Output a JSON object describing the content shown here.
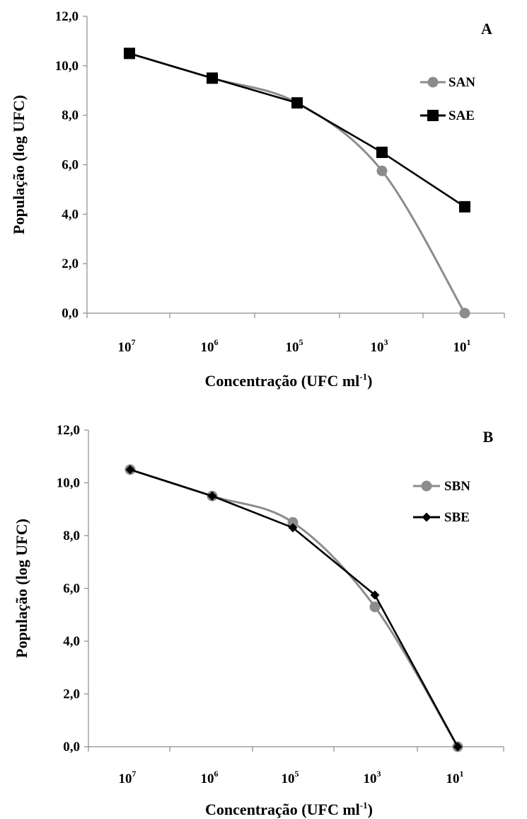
{
  "chart_data": [
    {
      "type": "line",
      "panel_label": "A",
      "categories": [
        "10",
        "10",
        "10",
        "10",
        "10"
      ],
      "category_exponents": [
        "7",
        "6",
        "5",
        "3",
        "1"
      ],
      "y_ticks": [
        "0,0",
        "2,0",
        "4,0",
        "6,0",
        "8,0",
        "10,0",
        "12,0"
      ],
      "ylim": [
        0,
        12
      ],
      "xlabel": "Concentração (UFC ml",
      "xlabel_sup": "-1",
      "xlabel_end": ")",
      "ylabel": "População (log UFC)",
      "legend_position": "right",
      "grid": false,
      "series": [
        {
          "name": "SAN",
          "color": "#8c8c8c",
          "marker": "circle",
          "smooth": true,
          "values": [
            10.5,
            9.5,
            8.5,
            5.75,
            0.0
          ]
        },
        {
          "name": "SAE",
          "color": "#000000",
          "marker": "square",
          "smooth": false,
          "values": [
            10.5,
            9.5,
            8.5,
            6.5,
            4.3
          ]
        }
      ]
    },
    {
      "type": "line",
      "panel_label": "B",
      "categories": [
        "10",
        "10",
        "10",
        "10",
        "10"
      ],
      "category_exponents": [
        "7",
        "6",
        "5",
        "3",
        "1"
      ],
      "y_ticks": [
        "0,0",
        "2,0",
        "4,0",
        "6,0",
        "8,0",
        "10,0",
        "12,0"
      ],
      "ylim": [
        0,
        12
      ],
      "xlabel": "Concentração (UFC ml",
      "xlabel_sup": "-1",
      "xlabel_end": ")",
      "ylabel": "População (log UFC)",
      "legend_position": "right",
      "grid": false,
      "series": [
        {
          "name": "SBN",
          "color": "#8c8c8c",
          "marker": "circle",
          "smooth": true,
          "values": [
            10.5,
            9.5,
            8.5,
            5.3,
            0.0
          ]
        },
        {
          "name": "SBE",
          "color": "#000000",
          "marker": "diamond",
          "smooth": false,
          "values": [
            10.5,
            9.5,
            8.3,
            5.75,
            0.0
          ]
        }
      ]
    }
  ]
}
